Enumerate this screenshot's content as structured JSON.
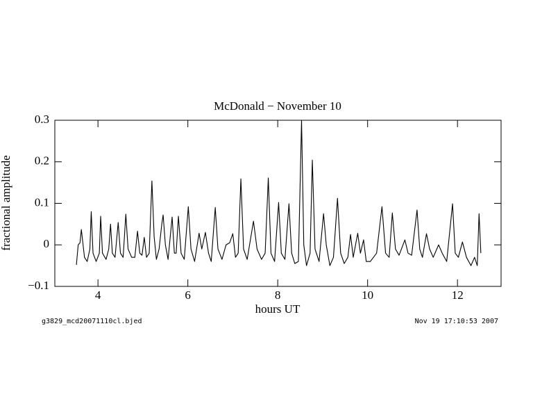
{
  "chart_data": {
    "type": "line",
    "title": "McDonald − November 10",
    "xlabel": "hours UT",
    "ylabel": "fractional amplitude",
    "note_left": "g3829_mcd20071110cl.bjed",
    "note_right": "Nov 19 17:10:53 2007",
    "xlim": [
      3.04,
      12.97
    ],
    "ylim": [
      -0.1,
      0.3
    ],
    "xticks": [
      4,
      6,
      8,
      10,
      12
    ],
    "yticks": [
      {
        "value": -0.1,
        "label": "−0.1"
      },
      0,
      0.1,
      0.2,
      0.3
    ],
    "grid": false,
    "series": [
      {
        "color": "#000000",
        "x": [
          3.52,
          3.56,
          3.6,
          3.63,
          3.7,
          3.76,
          3.82,
          3.85,
          3.89,
          3.96,
          4.03,
          4.06,
          4.1,
          4.18,
          4.24,
          4.28,
          4.32,
          4.38,
          4.45,
          4.5,
          4.56,
          4.62,
          4.67,
          4.75,
          4.82,
          4.88,
          4.93,
          4.98,
          5.03,
          5.08,
          5.14,
          5.2,
          5.25,
          5.3,
          5.36,
          5.42,
          5.45,
          5.5,
          5.56,
          5.65,
          5.7,
          5.74,
          5.79,
          5.85,
          5.92,
          6.01,
          6.07,
          6.15,
          6.25,
          6.31,
          6.39,
          6.46,
          6.52,
          6.61,
          6.67,
          6.76,
          6.85,
          6.93,
          7.0,
          7.06,
          7.12,
          7.18,
          7.24,
          7.32,
          7.46,
          7.54,
          7.64,
          7.72,
          7.79,
          7.85,
          7.93,
          8.02,
          8.08,
          8.16,
          8.25,
          8.31,
          8.38,
          8.46,
          8.53,
          8.58,
          8.64,
          8.72,
          8.77,
          8.83,
          8.92,
          9.02,
          9.08,
          9.16,
          9.24,
          9.33,
          9.4,
          9.48,
          9.56,
          9.62,
          9.68,
          9.78,
          9.84,
          9.91,
          9.97,
          10.06,
          10.2,
          10.32,
          10.4,
          10.48,
          10.55,
          10.62,
          10.7,
          10.83,
          10.9,
          10.98,
          11.1,
          11.16,
          11.22,
          11.31,
          11.38,
          11.46,
          11.58,
          11.66,
          11.76,
          11.89,
          11.95,
          12.02,
          12.11,
          12.2,
          12.3,
          12.38,
          12.44,
          12.48,
          12.52
        ],
        "values": [
          -0.048,
          0.0,
          0.005,
          0.037,
          -0.03,
          -0.04,
          -0.01,
          0.08,
          -0.02,
          -0.04,
          -0.02,
          0.069,
          -0.02,
          -0.035,
          -0.01,
          0.05,
          -0.02,
          -0.03,
          0.054,
          -0.02,
          -0.03,
          0.074,
          -0.01,
          -0.03,
          -0.03,
          0.033,
          -0.02,
          -0.025,
          0.018,
          -0.03,
          -0.02,
          0.154,
          0.02,
          -0.035,
          -0.01,
          0.05,
          0.072,
          0.0,
          -0.035,
          0.067,
          -0.02,
          -0.02,
          0.069,
          -0.02,
          -0.035,
          0.092,
          -0.01,
          -0.04,
          0.028,
          -0.01,
          0.03,
          -0.02,
          -0.04,
          0.09,
          -0.01,
          -0.035,
          0.0,
          0.005,
          0.027,
          -0.03,
          -0.02,
          0.159,
          -0.01,
          -0.035,
          0.057,
          -0.01,
          -0.035,
          -0.02,
          0.161,
          -0.02,
          -0.04,
          0.102,
          -0.02,
          -0.035,
          0.099,
          -0.02,
          -0.045,
          -0.04,
          0.3,
          0.0,
          -0.05,
          -0.02,
          0.204,
          -0.01,
          -0.04,
          0.075,
          0.0,
          -0.05,
          -0.03,
          0.112,
          -0.02,
          -0.045,
          -0.03,
          0.025,
          -0.03,
          0.028,
          -0.02,
          0.012,
          -0.04,
          -0.04,
          -0.02,
          0.092,
          -0.02,
          -0.03,
          0.077,
          -0.01,
          -0.025,
          0.012,
          -0.02,
          -0.025,
          0.084,
          -0.01,
          -0.03,
          0.027,
          -0.01,
          -0.03,
          0.0,
          -0.02,
          -0.04,
          0.099,
          -0.02,
          -0.03,
          0.007,
          -0.03,
          -0.05,
          -0.03,
          -0.05,
          0.075,
          -0.02
        ]
      }
    ]
  }
}
